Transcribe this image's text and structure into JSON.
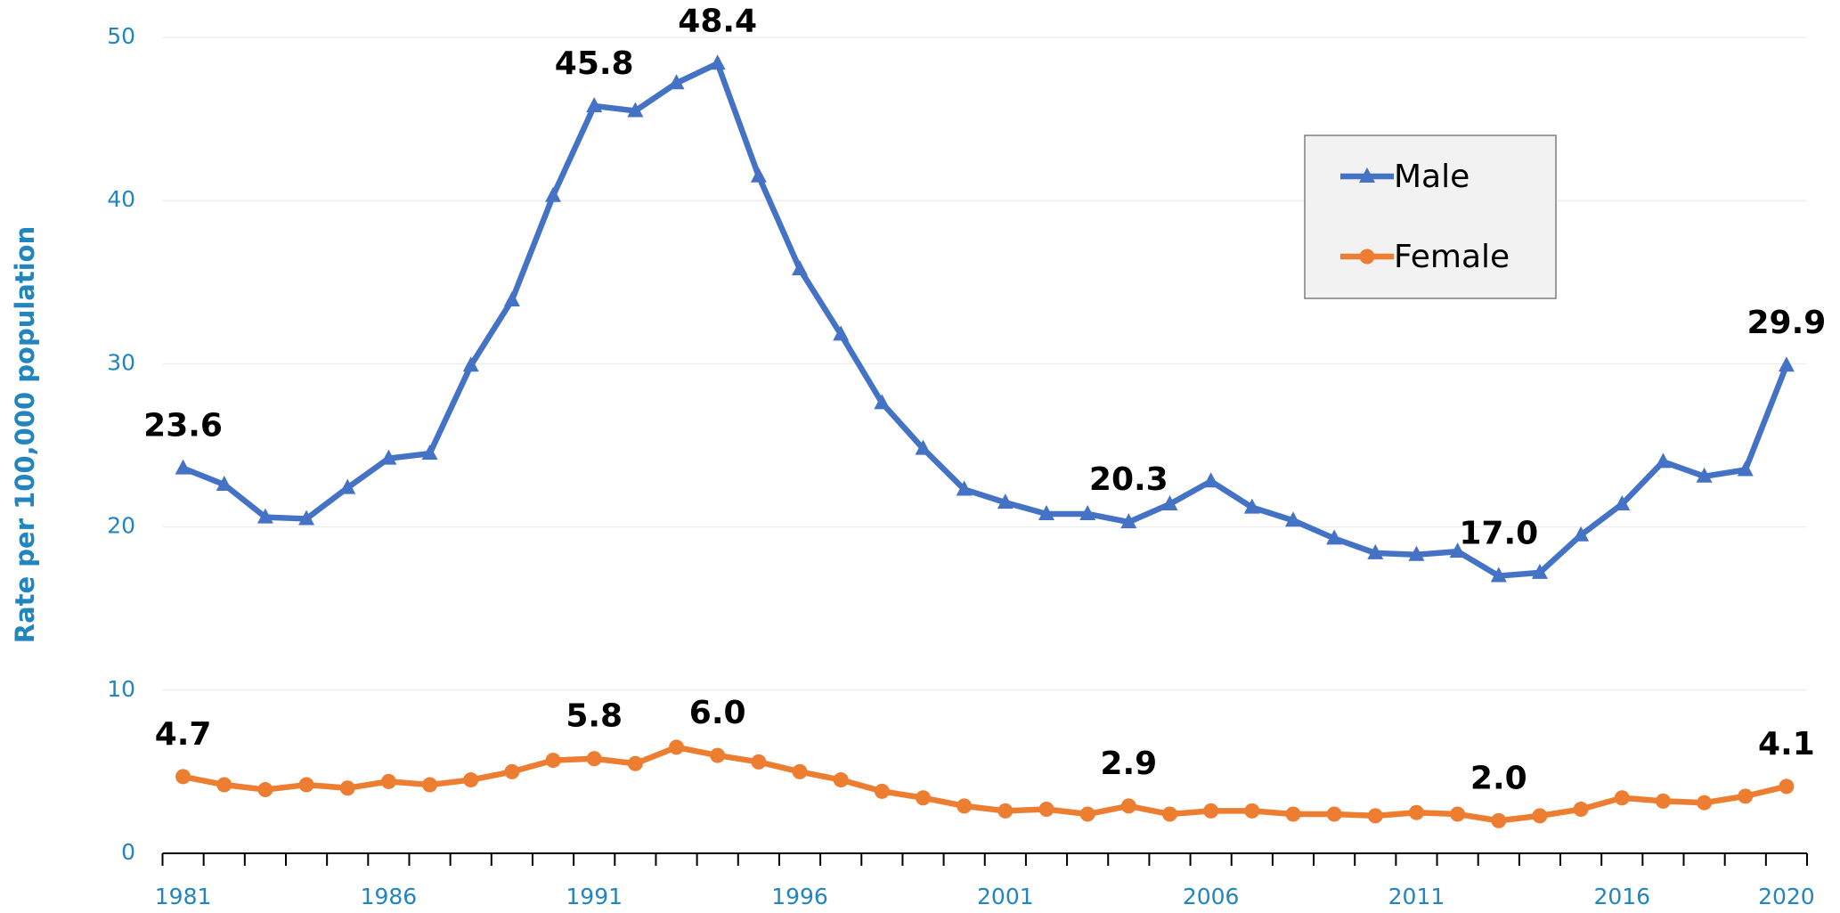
{
  "chart_data": {
    "type": "line",
    "y_label": "Rate per 100,000 population",
    "categories": [
      1981,
      null,
      null,
      null,
      null,
      1986,
      null,
      null,
      null,
      null,
      1991,
      null,
      null,
      null,
      null,
      1996,
      null,
      null,
      null,
      null,
      2001,
      null,
      null,
      null,
      null,
      2006,
      null,
      null,
      null,
      null,
      2011,
      null,
      null,
      null,
      null,
      2016,
      null,
      null,
      null,
      2020
    ],
    "series": [
      {
        "name": "Male",
        "color": "#4472c4",
        "marker": "triangle",
        "values": [
          23.6,
          22.6,
          20.6,
          20.5,
          22.4,
          24.2,
          24.5,
          29.9,
          33.9,
          40.3,
          45.8,
          45.5,
          47.2,
          48.4,
          41.5,
          35.8,
          31.8,
          27.6,
          24.8,
          22.3,
          21.5,
          20.8,
          20.8,
          20.3,
          21.4,
          22.8,
          21.2,
          20.4,
          19.3,
          18.4,
          18.3,
          18.5,
          17.0,
          17.2,
          19.5,
          21.4,
          24.0,
          23.1,
          23.5,
          29.9
        ],
        "value_labels": [
          "23.6",
          null,
          null,
          null,
          null,
          null,
          null,
          null,
          null,
          null,
          "45.8",
          null,
          null,
          "48.4",
          null,
          null,
          null,
          null,
          null,
          null,
          null,
          null,
          null,
          "20.3",
          null,
          null,
          null,
          null,
          null,
          null,
          null,
          null,
          "17.0",
          null,
          null,
          null,
          null,
          null,
          null,
          "29.9"
        ]
      },
      {
        "name": "Female",
        "color": "#ed7d31",
        "marker": "circle",
        "values": [
          4.7,
          4.2,
          3.9,
          4.2,
          4.0,
          4.4,
          4.2,
          4.5,
          5.0,
          5.7,
          5.8,
          5.5,
          6.5,
          6.0,
          5.6,
          5.0,
          4.5,
          3.8,
          3.4,
          2.9,
          2.6,
          2.7,
          2.4,
          2.9,
          2.4,
          2.6,
          2.6,
          2.4,
          2.4,
          2.3,
          2.5,
          2.4,
          2.0,
          2.3,
          2.7,
          3.4,
          3.2,
          3.1,
          3.5,
          4.1
        ],
        "value_labels": [
          "4.7",
          null,
          null,
          null,
          null,
          null,
          null,
          null,
          null,
          null,
          "5.8",
          null,
          null,
          "6.0",
          null,
          null,
          null,
          null,
          null,
          null,
          null,
          null,
          null,
          "2.9",
          null,
          null,
          null,
          null,
          null,
          null,
          null,
          null,
          "2.0",
          null,
          null,
          null,
          null,
          null,
          null,
          "4.1"
        ]
      }
    ],
    "ylim": [
      0,
      50
    ],
    "yticks": [
      0,
      10,
      20,
      30,
      40,
      50
    ],
    "grid": true,
    "legend": "upper right"
  }
}
